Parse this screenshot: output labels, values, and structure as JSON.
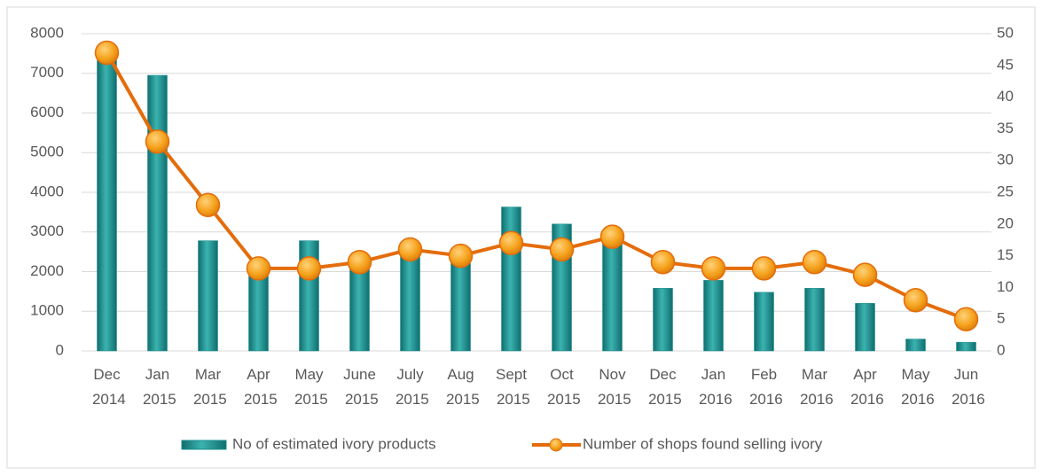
{
  "chart_data": {
    "type": "bar-line",
    "categories": [
      "Dec 2014",
      "Jan 2015",
      "Mar 2015",
      "Apr 2015",
      "May 2015",
      "June 2015",
      "July 2015",
      "Aug 2015",
      "Sept 2015",
      "Oct 2015",
      "Nov 2015",
      "Dec 2015",
      "Jan 2016",
      "Feb 2016",
      "Mar 2016",
      "Apr 2016",
      "May 2016",
      "Jun 2016"
    ],
    "series": [
      {
        "name": "No of estimated ivory products",
        "type": "bar",
        "color": "#1b8c8c",
        "values": [
          7500,
          6950,
          2780,
          2100,
          2780,
          2200,
          2500,
          2300,
          3630,
          3200,
          2900,
          1580,
          1780,
          1480,
          1580,
          1200,
          300,
          220
        ]
      },
      {
        "name": "Number of shops found selling ivory",
        "type": "line",
        "axis": "y2",
        "color": "#e46c0a",
        "values": [
          47,
          33,
          23,
          13,
          13,
          14,
          16,
          15,
          17,
          16,
          18,
          14,
          13,
          13,
          14,
          12,
          8,
          5
        ]
      }
    ],
    "ylim": [
      0,
      8000
    ],
    "yticks": [
      0,
      1000,
      2000,
      3000,
      4000,
      5000,
      6000,
      7000,
      8000
    ],
    "y2lim": [
      0,
      50
    ],
    "y2ticks": [
      0,
      5,
      10,
      15,
      20,
      25,
      30,
      35,
      40,
      45,
      50
    ],
    "grid": true,
    "legend": "bottom"
  }
}
